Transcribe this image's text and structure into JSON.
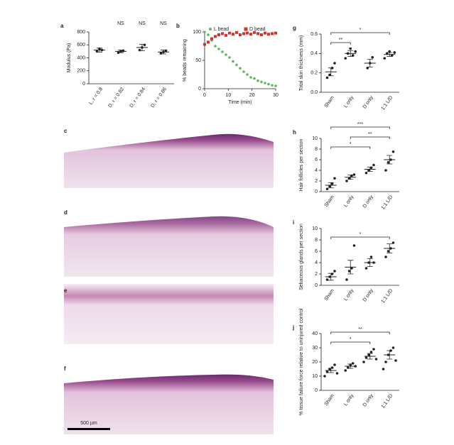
{
  "chart_data": [
    {
      "panel": "a",
      "type": "dot",
      "ylabel": "Modulus (Pa)",
      "categories": [
        "L, r = 0.8",
        "D, r = 0.82",
        "D, r = 0.84",
        "D, r = 0.86"
      ],
      "values": [
        520,
        500,
        560,
        490
      ],
      "errors": [
        30,
        20,
        50,
        30
      ],
      "points": [
        [
          500,
          540,
          520
        ],
        [
          480,
          500,
          510
        ],
        [
          520,
          560,
          600
        ],
        [
          470,
          490,
          510
        ]
      ],
      "value_annotations": [
        null,
        "NS",
        "NS",
        "NS"
      ],
      "ylim": [
        0,
        800
      ],
      "yticks": [
        0,
        200,
        400,
        600,
        800
      ],
      "color": "#222"
    },
    {
      "panel": "b",
      "type": "line",
      "xlabel": "Time (min)",
      "ylabel": "% beads remaining",
      "x": [
        0,
        1.5,
        3,
        4.5,
        6,
        7.5,
        9,
        10.5,
        12,
        13.5,
        15,
        16.5,
        18,
        19.5,
        21,
        22.5,
        24,
        25.5,
        27,
        28.5,
        30
      ],
      "series": [
        {
          "name": "L bead",
          "color": "#5cb85c",
          "values": [
            100,
            95,
            85,
            75,
            70,
            65,
            60,
            55,
            48,
            42,
            36,
            30,
            25,
            20,
            18,
            14,
            12,
            10,
            8,
            6,
            5
          ]
        },
        {
          "name": "D bead",
          "color": "#d9302c",
          "values": [
            78,
            82,
            88,
            92,
            95,
            97,
            94,
            98,
            96,
            99,
            95,
            97,
            98,
            96,
            99,
            97,
            95,
            98,
            96,
            97,
            98
          ]
        }
      ],
      "xlim": [
        0,
        30
      ],
      "xticks": [
        0,
        10,
        20,
        30
      ],
      "ylim": [
        0,
        100
      ],
      "yticks": [
        0,
        50,
        100
      ],
      "legend": "top"
    },
    {
      "panel": "g",
      "type": "dot",
      "ylabel": "Total skin thickness (mm)",
      "categories": [
        "Sham",
        "L only",
        "D only",
        "1:1 L/D"
      ],
      "values": [
        0.21,
        0.4,
        0.3,
        0.39
      ],
      "errors": [
        0.04,
        0.03,
        0.04,
        0.02
      ],
      "points": [
        [
          0.15,
          0.18,
          0.25,
          0.3
        ],
        [
          0.35,
          0.4,
          0.45,
          0.38,
          0.42
        ],
        [
          0.25,
          0.3,
          0.36
        ],
        [
          0.35,
          0.4,
          0.42,
          0.38,
          0.41
        ]
      ],
      "brackets": [
        {
          "pair": [
            0,
            1
          ],
          "label": "**"
        },
        {
          "pair": [
            0,
            3
          ],
          "label": "*"
        }
      ],
      "ylim": [
        0,
        0.6
      ],
      "yticks": [
        {
          "value": 0,
          "label": "0.0"
        },
        0.2,
        0.4,
        0.6
      ],
      "color": "#222"
    },
    {
      "panel": "h",
      "type": "dot",
      "ylabel": "Hair follicles per section",
      "categories": [
        "Sham",
        "L only",
        "D only",
        "1:1 L/D"
      ],
      "values": [
        1.2,
        2.7,
        4.2,
        6.0
      ],
      "errors": [
        0.5,
        0.4,
        0.4,
        0.8
      ],
      "points": [
        [
          0.5,
          1,
          1.5,
          2.5
        ],
        [
          2,
          2.5,
          3,
          3.2
        ],
        [
          3.5,
          4,
          4.5,
          5
        ],
        [
          4,
          5.5,
          6,
          7.5
        ]
      ],
      "brackets": [
        {
          "pair": [
            0,
            2
          ],
          "label": "*"
        },
        {
          "pair": [
            1,
            3
          ],
          "label": "**"
        },
        {
          "pair": [
            0,
            3
          ],
          "label": "***"
        }
      ],
      "ylim": [
        0,
        10
      ],
      "yticks": [
        0,
        2,
        4,
        6,
        8,
        10
      ],
      "color": "#222"
    },
    {
      "panel": "i",
      "type": "dot",
      "ylabel": "Sebaceous glands per section",
      "categories": [
        "Sham",
        "L only",
        "D only",
        "1:1 L/D"
      ],
      "values": [
        1.5,
        3.2,
        4.0,
        6.5
      ],
      "errors": [
        0.6,
        1.2,
        0.7,
        0.8
      ],
      "points": [
        [
          1,
          1.5,
          2,
          2.5
        ],
        [
          1,
          2.5,
          3,
          7
        ],
        [
          3,
          4,
          5,
          4
        ],
        [
          5,
          6,
          6.5,
          7.5
        ]
      ],
      "brackets": [
        {
          "pair": [
            0,
            3
          ],
          "label": "*"
        }
      ],
      "ylim": [
        0,
        10
      ],
      "yticks": [
        0,
        2,
        4,
        6,
        8,
        10
      ],
      "color": "#222"
    },
    {
      "panel": "j",
      "type": "dot",
      "ylabel": "% tissue failure force relative to uninjured control",
      "categories": [
        "Sham",
        "L only",
        "D only",
        "1:1 L/D"
      ],
      "values": [
        14,
        17,
        24,
        25
      ],
      "errors": [
        1.5,
        1.5,
        2,
        3
      ],
      "points": [
        [
          10,
          13,
          15,
          16,
          18,
          12
        ],
        [
          14,
          16,
          18,
          19,
          17
        ],
        [
          20,
          23,
          25,
          27,
          29,
          22
        ],
        [
          15,
          20,
          25,
          28,
          30,
          21
        ]
      ],
      "brackets": [
        {
          "pair": [
            0,
            2
          ],
          "label": "*"
        },
        {
          "pair": [
            0,
            3
          ],
          "label": "**"
        }
      ],
      "ylim": [
        0,
        40
      ],
      "yticks": [
        0,
        10,
        20,
        30,
        40
      ],
      "color": "#222"
    }
  ],
  "histology": [
    {
      "panel": "c"
    },
    {
      "panel": "d"
    },
    {
      "panel": "e"
    },
    {
      "panel": "f",
      "scale_bar": "500 µm"
    }
  ]
}
